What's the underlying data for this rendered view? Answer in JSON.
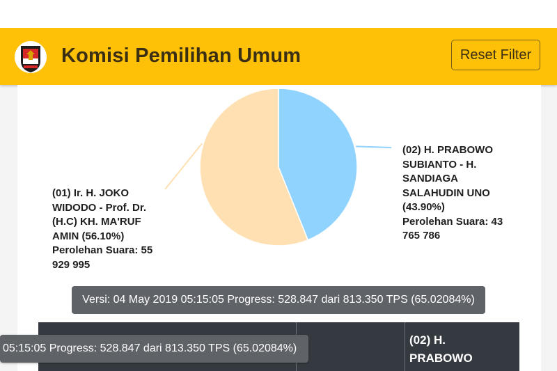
{
  "app": {
    "title": "Komisi Pemilihan Umum",
    "reset_label": "Reset Filter",
    "accent_color": "#ffc107"
  },
  "chart_data": {
    "type": "pie",
    "slices": [
      {
        "label_lines": [
          "(01) Ir. H. JOKO",
          "WIDODO - Prof. Dr.",
          "(H.C) KH. MA'RUF",
          "AMIN (56.10%)"
        ],
        "percent": 56.1,
        "votes_lines": [
          "Perolehan Suara: 55",
          "929 995"
        ],
        "color": "#ffe0b3"
      },
      {
        "label_lines": [
          "(02) H. PRABOWO",
          "SUBIANTO - H.",
          "SANDIAGA",
          "SALAHUDIN UNO",
          "(43.90%)"
        ],
        "percent": 43.9,
        "votes_lines": [
          "Perolehan Suara: 43",
          "765 786"
        ],
        "color": "#90d3ff"
      }
    ]
  },
  "version_bar": "Versi: 04 May 2019 05:15:05 Progress: 528.847 dari 813.350 TPS (65.02084%)",
  "tooltip": "05:15:05 Progress: 528.847 dari 813.350 TPS (65.02084%)",
  "table": {
    "candidate_02_header": [
      "(02) H.",
      "PRABOWO"
    ]
  }
}
